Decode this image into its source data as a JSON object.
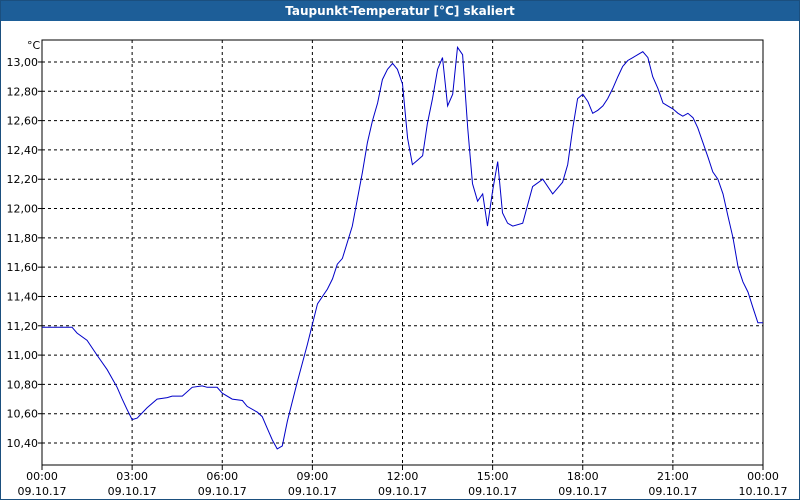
{
  "window": {
    "title": "Taupunkt-Temperatur [°C] skaliert"
  },
  "colors": {
    "titlebar": "#1d5e98",
    "line": "#0000c8",
    "grid": "#000000",
    "axis": "#000000"
  },
  "chart_data": {
    "type": "line",
    "title": "Taupunkt-Temperatur [°C] skaliert",
    "ylabel": "°C",
    "xlabel": "",
    "grid": true,
    "ylim": [
      10.25,
      13.15
    ],
    "xlim": [
      0,
      24
    ],
    "y_ticks": [
      "10,40",
      "10,60",
      "10,80",
      "11,00",
      "11,20",
      "11,40",
      "11,60",
      "11,80",
      "12,00",
      "12,20",
      "12,40",
      "12,60",
      "12,80",
      "13,00"
    ],
    "y_tick_values": [
      10.4,
      10.6,
      10.8,
      11.0,
      11.2,
      11.4,
      11.6,
      11.8,
      12.0,
      12.2,
      12.4,
      12.6,
      12.8,
      13.0
    ],
    "x_ticks": [
      {
        "time": "00:00",
        "date": "09.10.17"
      },
      {
        "time": "03:00",
        "date": "09.10.17"
      },
      {
        "time": "06:00",
        "date": "09.10.17"
      },
      {
        "time": "09:00",
        "date": "09.10.17"
      },
      {
        "time": "12:00",
        "date": "09.10.17"
      },
      {
        "time": "15:00",
        "date": "09.10.17"
      },
      {
        "time": "18:00",
        "date": "09.10.17"
      },
      {
        "time": "21:00",
        "date": "09.10.17"
      },
      {
        "time": "00:00",
        "date": "10.10.17"
      }
    ],
    "x_tick_values": [
      0,
      3,
      6,
      9,
      12,
      15,
      18,
      21,
      24
    ],
    "series": [
      {
        "x": [
          0.0,
          0.33,
          0.67,
          1.0,
          1.17,
          1.5,
          1.83,
          2.17,
          2.5,
          2.67,
          2.83,
          3.0,
          3.17,
          3.5,
          3.83,
          4.17,
          4.33,
          4.67,
          5.0,
          5.33,
          5.5,
          5.83,
          6.0,
          6.33,
          6.67,
          6.83,
          7.17,
          7.33,
          7.5,
          7.67,
          7.83,
          8.0,
          8.17,
          8.5,
          8.83,
          9.17,
          9.5,
          9.67,
          9.83,
          10.0,
          10.33,
          10.67,
          10.83,
          11.0,
          11.17,
          11.33,
          11.5,
          11.67,
          11.83,
          12.0,
          12.17,
          12.33,
          12.5,
          12.67,
          12.83,
          13.0,
          13.17,
          13.33,
          13.5,
          13.67,
          13.83,
          14.0,
          14.17,
          14.33,
          14.5,
          14.67,
          14.83,
          15.0,
          15.17,
          15.33,
          15.5,
          15.67,
          16.0,
          16.33,
          16.67,
          17.0,
          17.33,
          17.5,
          17.67,
          17.83,
          18.0,
          18.17,
          18.33,
          18.5,
          18.67,
          18.83,
          19.0,
          19.17,
          19.33,
          19.5,
          19.67,
          19.83,
          20.0,
          20.17,
          20.33,
          20.5,
          20.67,
          20.83,
          21.0,
          21.17,
          21.33,
          21.5,
          21.67,
          21.83,
          22.0,
          22.17,
          22.33,
          22.5,
          22.67,
          22.83,
          23.0,
          23.17,
          23.33,
          23.5,
          23.67,
          23.83,
          24.0
        ],
        "y": [
          11.19,
          11.19,
          11.19,
          11.19,
          11.15,
          11.1,
          11.0,
          10.9,
          10.78,
          10.7,
          10.63,
          10.56,
          10.57,
          10.64,
          10.7,
          10.71,
          10.72,
          10.72,
          10.78,
          10.79,
          10.78,
          10.78,
          10.74,
          10.7,
          10.69,
          10.65,
          10.61,
          10.58,
          10.5,
          10.42,
          10.36,
          10.38,
          10.55,
          10.82,
          11.07,
          11.35,
          11.45,
          11.52,
          11.62,
          11.66,
          11.88,
          12.25,
          12.45,
          12.6,
          12.72,
          12.88,
          12.95,
          12.99,
          12.95,
          12.85,
          12.48,
          12.3,
          12.33,
          12.36,
          12.58,
          12.75,
          12.95,
          13.03,
          12.7,
          12.78,
          13.1,
          13.05,
          12.55,
          12.17,
          12.05,
          12.1,
          11.88,
          12.12,
          12.32,
          11.97,
          11.9,
          11.88,
          11.9,
          12.15,
          12.2,
          12.1,
          12.18,
          12.3,
          12.55,
          12.75,
          12.78,
          12.73,
          12.65,
          12.67,
          12.7,
          12.75,
          12.82,
          12.9,
          12.97,
          13.01,
          13.03,
          13.05,
          13.07,
          13.03,
          12.9,
          12.82,
          12.72,
          12.7,
          12.68,
          12.65,
          12.63,
          12.65,
          12.62,
          12.55,
          12.45,
          12.35,
          12.25,
          12.2,
          12.1,
          11.95,
          11.8,
          11.6,
          11.5,
          11.43,
          11.32,
          11.22,
          11.22
        ]
      }
    ]
  }
}
